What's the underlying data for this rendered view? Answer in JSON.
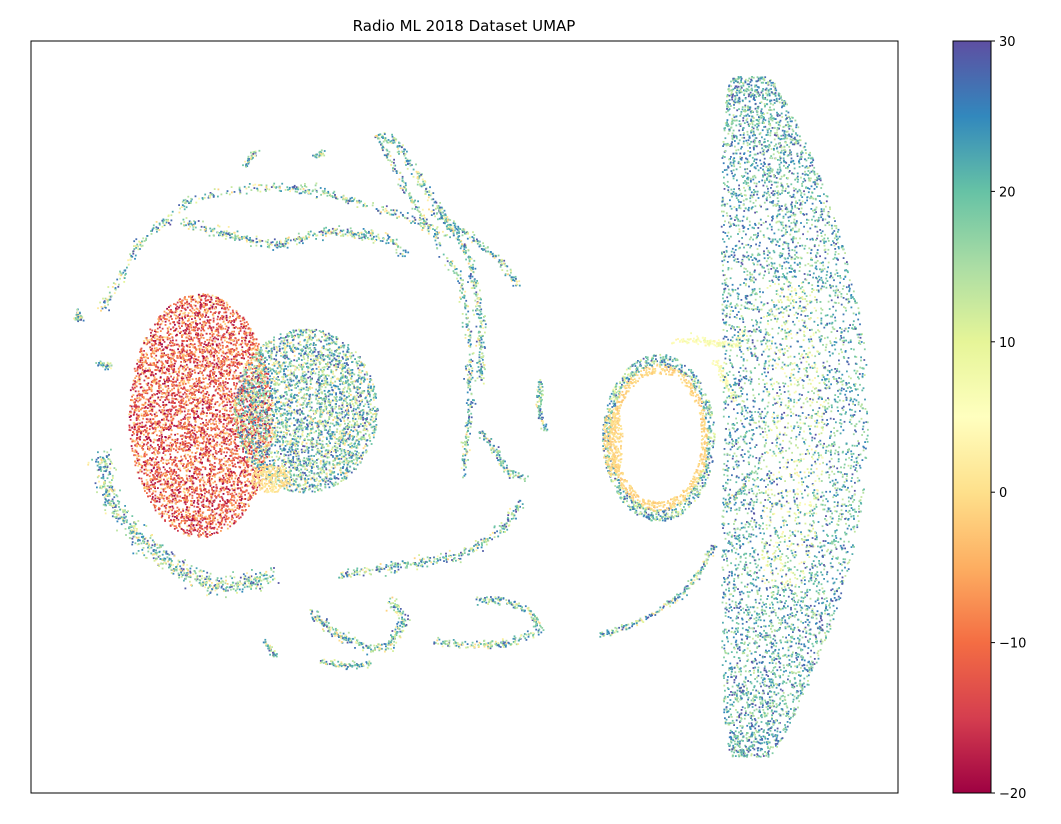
{
  "chart_data": {
    "type": "scatter",
    "title": "Radio ML 2018 Dataset UMAP",
    "xlabel": "",
    "ylabel": "",
    "axes_ticks_visible": false,
    "grid": false,
    "legend": "none",
    "colorbar": {
      "placement": "right",
      "colormap": "Spectral",
      "range": [
        -20,
        30
      ],
      "ticks": [
        30,
        20,
        10,
        0,
        -10,
        -20
      ],
      "tick_labels": [
        "30",
        "20",
        "10",
        "0",
        "−10",
        "−20"
      ],
      "colors_low_to_high": [
        "#9e0142",
        "#d53e4f",
        "#f46d43",
        "#fdae61",
        "#fee08b",
        "#ffffbf",
        "#e6f598",
        "#abdda4",
        "#66c2a5",
        "#3288bd",
        "#5e4fa2"
      ]
    },
    "clusters": [
      {
        "name": "left-red-blob",
        "snr_mix": "-20 to 0"
      },
      {
        "name": "left-mixed-blob",
        "snr_mix": "0 to 30"
      },
      {
        "name": "center-ring",
        "snr_mix": "-2 to 30"
      },
      {
        "name": "right-elongated-cluster",
        "snr_mix": "5 to 30"
      },
      {
        "name": "filament-arcs",
        "snr_mix": "0 to 30"
      }
    ]
  }
}
